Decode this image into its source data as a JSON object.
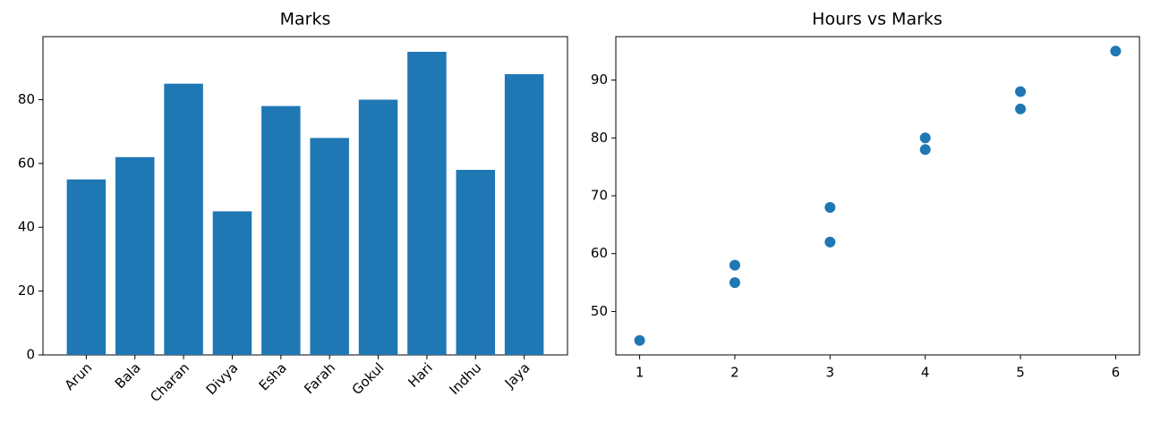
{
  "chart_data": [
    {
      "type": "bar",
      "title": "Marks",
      "categories": [
        "Arun",
        "Bala",
        "Charan",
        "Divya",
        "Esha",
        "Farah",
        "Gokul",
        "Hari",
        "Indhu",
        "Jaya"
      ],
      "values": [
        55,
        62,
        85,
        45,
        78,
        68,
        80,
        95,
        58,
        88
      ],
      "color": "#1f77b4",
      "ylim": [
        0,
        99.75
      ],
      "yticks": [
        0,
        20,
        40,
        60,
        80
      ],
      "grid": false
    },
    {
      "type": "scatter",
      "title": "Hours vs Marks",
      "x": [
        2,
        3,
        5,
        1,
        4,
        3,
        4,
        6,
        2,
        5
      ],
      "values": [
        55,
        62,
        85,
        45,
        78,
        68,
        80,
        95,
        58,
        88
      ],
      "color": "#1f77b4",
      "xlim": [
        0.75,
        6.25
      ],
      "xticks": [
        1,
        2,
        3,
        4,
        5,
        6
      ],
      "ylim": [
        42.5,
        97.5
      ],
      "yticks": [
        50,
        60,
        70,
        80,
        90
      ],
      "grid": false
    }
  ]
}
